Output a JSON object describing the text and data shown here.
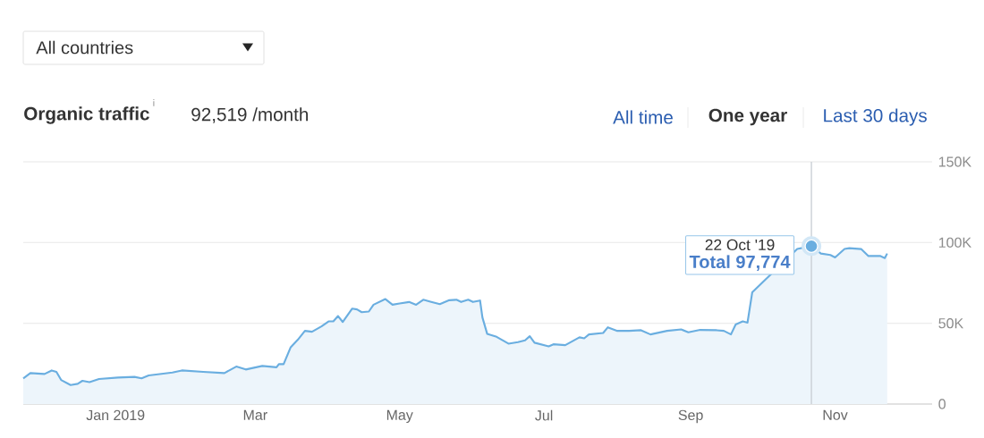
{
  "chart_data": {
    "type": "area",
    "title": "Organic traffic",
    "subtitle": "92,519 /month",
    "x": [
      "2018-11-23",
      "2018-11-26",
      "2018-12-02",
      "2018-12-05",
      "2018-12-07",
      "2018-12-09",
      "2018-12-13",
      "2018-12-16",
      "2018-12-18",
      "2018-12-21",
      "2018-12-25",
      "2019-01-02",
      "2019-01-09",
      "2019-01-12",
      "2019-01-15",
      "2019-01-25",
      "2019-01-29",
      "2019-02-07",
      "2019-02-16",
      "2019-02-21",
      "2019-02-25",
      "2019-03-04",
      "2019-03-10",
      "2019-03-11",
      "2019-03-13",
      "2019-03-16",
      "2019-03-19",
      "2019-03-22",
      "2019-03-25",
      "2019-03-29",
      "2019-04-01",
      "2019-04-03",
      "2019-04-05",
      "2019-04-07",
      "2019-04-11",
      "2019-04-13",
      "2019-04-15",
      "2019-04-18",
      "2019-04-20",
      "2019-04-25",
      "2019-04-28",
      "2019-05-01",
      "2019-05-05",
      "2019-05-08",
      "2019-05-11",
      "2019-05-14",
      "2019-05-18",
      "2019-05-22",
      "2019-05-25",
      "2019-05-27",
      "2019-05-30",
      "2019-06-01",
      "2019-06-04",
      "2019-06-05",
      "2019-06-07",
      "2019-06-11",
      "2019-06-16",
      "2019-06-20",
      "2019-06-23",
      "2019-06-25",
      "2019-06-27",
      "2019-07-03",
      "2019-07-05",
      "2019-07-10",
      "2019-07-16",
      "2019-07-18",
      "2019-07-20",
      "2019-07-26",
      "2019-07-28",
      "2019-08-01",
      "2019-08-06",
      "2019-08-11",
      "2019-08-15",
      "2019-08-22",
      "2019-08-28",
      "2019-08-31",
      "2019-09-05",
      "2019-09-12",
      "2019-09-15",
      "2019-09-18",
      "2019-09-20",
      "2019-09-23",
      "2019-09-25",
      "2019-09-27",
      "2019-09-28",
      "2019-10-16",
      "2019-10-20",
      "2019-10-22",
      "2019-10-26",
      "2019-10-30",
      "2019-11-01",
      "2019-11-05",
      "2019-11-07",
      "2019-11-12",
      "2019-11-15",
      "2019-11-20",
      "2019-11-22",
      "2019-11-23"
    ],
    "values": [
      15900,
      19200,
      18600,
      20800,
      19900,
      14900,
      11800,
      12500,
      14400,
      13600,
      15500,
      16400,
      16800,
      15900,
      17700,
      19500,
      20800,
      19900,
      19200,
      23200,
      21400,
      23600,
      22800,
      24700,
      24700,
      35200,
      39800,
      45300,
      44800,
      48100,
      51200,
      51200,
      54500,
      50800,
      59100,
      58600,
      56900,
      57300,
      61500,
      65000,
      61500,
      62300,
      63200,
      61500,
      64600,
      63400,
      61900,
      64300,
      64600,
      63200,
      64600,
      63200,
      64100,
      53600,
      43500,
      41600,
      37400,
      38300,
      39400,
      42000,
      38000,
      35700,
      37000,
      36500,
      41300,
      40700,
      43100,
      44000,
      47500,
      45300,
      45300,
      45700,
      43100,
      45300,
      46200,
      44400,
      45900,
      45700,
      45300,
      43100,
      49300,
      51200,
      50400,
      69200,
      null,
      96000,
      97200,
      97774,
      93200,
      92300,
      90800,
      96000,
      96500,
      96000,
      91700,
      91700,
      90400,
      93200
    ],
    "color": "#6aaee0",
    "xlim": [
      "2018-11-23",
      "2019-12-12"
    ],
    "xticks": [
      {
        "value": "2019-01-01",
        "label": "Jan 2019"
      },
      {
        "value": "2019-03-01",
        "label": "Mar"
      },
      {
        "value": "2019-05-01",
        "label": "May"
      },
      {
        "value": "2019-07-01",
        "label": "Jul"
      },
      {
        "value": "2019-09-01",
        "label": "Sep"
      },
      {
        "value": "2019-11-01",
        "label": "Nov"
      }
    ],
    "ylim": [
      0,
      150000
    ],
    "yticks": [
      {
        "value": 0,
        "label": "0"
      },
      {
        "value": 50000,
        "label": "50K"
      },
      {
        "value": 100000,
        "label": "100K"
      },
      {
        "value": 150000,
        "label": "150K"
      }
    ],
    "grid": "y",
    "ref_lines": [
      {
        "axis": "x",
        "value": "2019-10-22",
        "color": "#c9ced4"
      }
    ],
    "annotations": [
      "All countries",
      "i",
      "All time",
      "One year",
      "Last 30 days",
      {
        "text": "22 Oct '19",
        "x": "2019-10-22",
        "y": 97774
      },
      {
        "text": "Total 97,774",
        "x": "2019-10-22",
        "y": 97774
      }
    ]
  }
}
